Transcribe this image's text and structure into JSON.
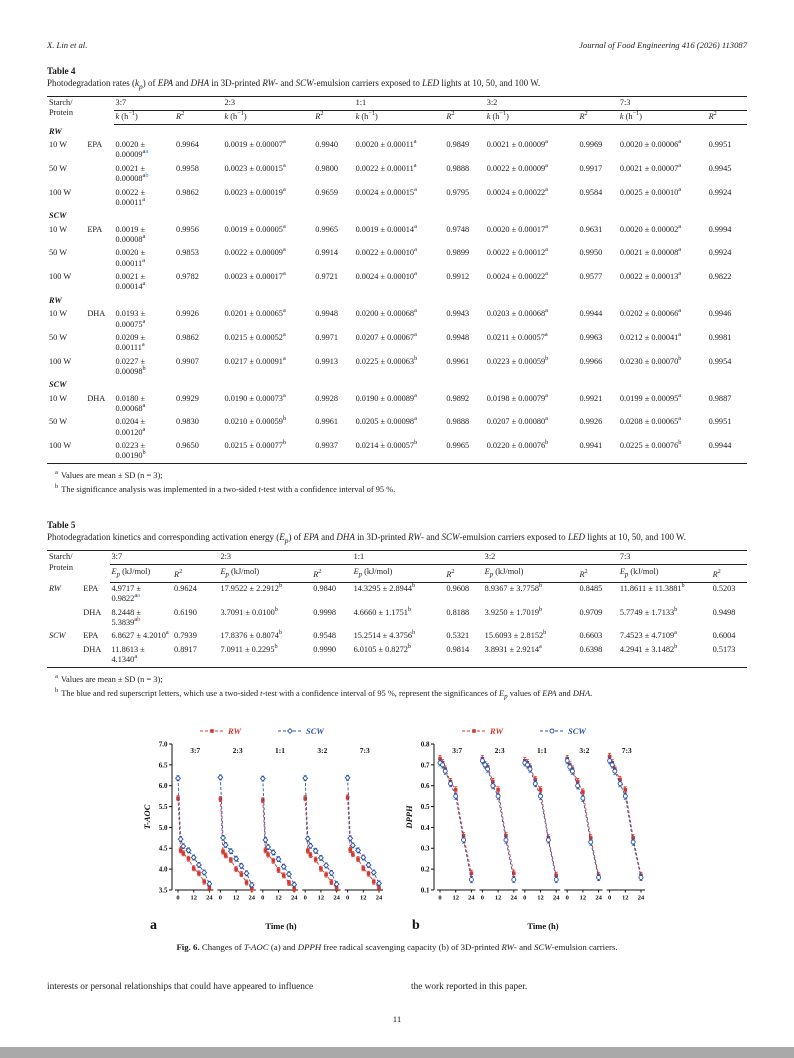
{
  "meta": {
    "sup_colors": {
      "k": "#111111",
      "b": "#2e86b5",
      "r": "#c0392b"
    },
    "series_colors": {
      "RW": "#d6382f",
      "SCW": "#2b54a8"
    }
  },
  "page": {
    "header_left": "X. Lin et al.",
    "header_right": "Journal of Food Engineering 416 (2026) 113087",
    "body_text_left": "interests or personal relationships that could have appeared to influence",
    "body_text_right": "the work reported in this paper.",
    "page_number": "11"
  },
  "table4": {
    "label": "Table 4",
    "caption": [
      {
        "t": "Photodegradation rates ("
      },
      {
        "t": "k",
        "i": 1
      },
      {
        "t": "p",
        "i": 1,
        "sub": 1
      },
      {
        "t": ") of "
      },
      {
        "t": "EPA",
        "i": 1
      },
      {
        "t": " and "
      },
      {
        "t": "DHA",
        "i": 1
      },
      {
        "t": " in 3D-printed "
      },
      {
        "t": "RW",
        "i": 1
      },
      {
        "t": "- and "
      },
      {
        "t": "SCW",
        "i": 1
      },
      {
        "t": "-emulsion carriers exposed to "
      },
      {
        "t": "LED",
        "i": 1
      },
      {
        "t": " lights at 10, 50, and 100 W."
      }
    ],
    "stub_header": [
      "Starch/",
      "Protein"
    ],
    "col_groups": [
      "3:7",
      "2:3",
      "1:1",
      "3:2",
      "7:3"
    ],
    "k_header": [
      {
        "t": "k",
        "i": 1
      },
      {
        "t": " (h"
      },
      {
        "t": "−1",
        "sup": 1
      },
      {
        "t": ")"
      }
    ],
    "r_header": [
      {
        "t": "R",
        "i": 1
      },
      {
        "t": "2",
        "sup": 1
      }
    ],
    "rows": [
      {
        "section": "RW"
      },
      {
        "label": "10 W",
        "sub": "EPA",
        "cells": [
          {
            "t": "0.0020 ± 0.00009",
            "sup": [
              [
                "a",
                "k"
              ],
              [
                "a",
                "b"
              ]
            ]
          },
          "0.9964",
          "0.0019 ± 0.00007^a",
          "0.9940",
          "0.0020 ± 0.00011^a",
          "0.9849",
          "0.0021 ± 0.00009^a",
          "0.9969",
          "0.0020 ± 0.00006^a",
          "0.9951"
        ]
      },
      {
        "label": "50 W",
        "sub": "",
        "cells": [
          {
            "t": "0.0021 ± 0.00008",
            "sup": [
              [
                "a",
                "k"
              ],
              [
                "b",
                "b"
              ]
            ]
          },
          "0.9958",
          "0.0023 ± 0.00015^a",
          "0.9800",
          "0.0022 ± 0.00011^a",
          "0.9888",
          "0.0022 ± 0.00009^a",
          "0.9917",
          "0.0021 ± 0.00007^a",
          "0.9945"
        ]
      },
      {
        "label": "100 W",
        "sub": "",
        "cells": [
          "0.0022 ± 0.00011^a",
          "0.9862",
          "0.0023 ± 0.00019^a",
          "0.9659",
          "0.0024 ± 0.00015^a",
          "0.9795",
          "0.0024 ± 0.00022^a",
          "0.9584",
          "0.0025 ± 0.00010^a",
          "0.9924"
        ]
      },
      {
        "section": "SCW"
      },
      {
        "label": "10 W",
        "sub": "EPA",
        "cells": [
          "0.0019 ± 0.00008^a",
          "0.9956",
          "0.0019 ± 0.00005^a",
          "0.9965",
          "0.0019 ± 0.00014^a",
          "0.9748",
          "0.0020 ± 0.00017^a",
          "0.9631",
          "0.0020 ± 0.00002^a",
          "0.9994"
        ]
      },
      {
        "label": "50 W",
        "sub": "",
        "cells": [
          "0.0020 ± 0.00011^a",
          "0.9853",
          "0.0022 ± 0.00009^a",
          "0.9914",
          "0.0022 ± 0.00010^a",
          "0.9899",
          "0.0022 ± 0.00012^a",
          "0.9950",
          "0.0021 ± 0.00008^a",
          "0.9924"
        ]
      },
      {
        "label": "100 W",
        "sub": "",
        "cells": [
          "0.0021 ± 0.00014^a",
          "0.9782",
          "0.0023 ± 0.00017^a",
          "0.9721",
          "0.0024 ± 0.00010^a",
          "0.9912",
          "0.0024 ± 0.00022^a",
          "0.9577",
          "0.0022 ± 0.00013^a",
          "0.9822"
        ]
      },
      {
        "section": "RW"
      },
      {
        "label": "10 W",
        "sub": "DHA",
        "cells": [
          "0.0193 ± 0.00075^a",
          "0.9926",
          "0.0201 ± 0.00065^a",
          "0.9948",
          "0.0200 ± 0.00068^a",
          "0.9943",
          "0.0203 ± 0.00068^a",
          "0.9944",
          "0.0202 ± 0.00066^a",
          "0.9946"
        ]
      },
      {
        "label": "50 W",
        "sub": "",
        "cells": [
          "0.0209 ± 0.00111^a",
          "0.9862",
          "0.0215 ± 0.00052^a",
          "0.9971",
          "0.0207 ± 0.00067^a",
          "0.9948",
          "0.0211 ± 0.00057^a",
          "0.9963",
          "0.0212 ± 0.00041^a",
          "0.9981"
        ]
      },
      {
        "label": "100 W",
        "sub": "",
        "cells": [
          "0.0227 ± 0.00098^b",
          "0.9907",
          "0.0217 ± 0.00091^a",
          "0.9913",
          "0.0225 ± 0.00063^b",
          "0.9961",
          "0.0223 ± 0.00059^b",
          "0.9966",
          "0.0230 ± 0.00070^b",
          "0.9954"
        ]
      },
      {
        "section": "SCW"
      },
      {
        "label": "10 W",
        "sub": "DHA",
        "cells": [
          "0.0180 ± 0.00068^a",
          "0.9929",
          "0.0190 ± 0.00073^a",
          "0.9928",
          "0.0190 ± 0.00089^a",
          "0.9892",
          "0.0198 ± 0.00079^a",
          "0.9921",
          "0.0199 ± 0.00095^a",
          "0.9887"
        ]
      },
      {
        "label": "50 W",
        "sub": "",
        "cells": [
          "0.0204 ± 0.00120^a",
          "0.9830",
          "0.0210 ± 0.00059^b",
          "0.9961",
          "0.0205 ± 0.00098^a",
          "0.9888",
          "0.0207 ± 0.00080^a",
          "0.9926",
          "0.0208 ± 0.00065^a",
          "0.9951"
        ]
      },
      {
        "label": "100 W",
        "sub": "",
        "cells": [
          "0.0223 ± 0.00190^b",
          "0.9650",
          "0.0215 ± 0.00077^b",
          "0.9937",
          "0.0214 ± 0.00057^b",
          "0.9965",
          "0.0220 ± 0.00076^b",
          "0.9941",
          "0.0225 ± 0.00076^b",
          "0.9944"
        ]
      }
    ],
    "footnotes": [
      {
        "mark": "a",
        "text": [
          {
            "t": "Values are mean ± SD (n = 3);"
          }
        ]
      },
      {
        "mark": "b",
        "text": [
          {
            "t": "The significance analysis was implemented in a two-sided "
          },
          {
            "t": "t",
            "i": 1
          },
          {
            "t": "-test with a confidence interval of 95 %."
          }
        ]
      }
    ]
  },
  "table5": {
    "label": "Table 5",
    "caption": [
      {
        "t": "Photodegradation kinetics and corresponding activation energy ("
      },
      {
        "t": "E",
        "i": 1
      },
      {
        "t": "p",
        "i": 1,
        "sub": 1
      },
      {
        "t": ") of "
      },
      {
        "t": "EPA",
        "i": 1
      },
      {
        "t": " and "
      },
      {
        "t": "DHA",
        "i": 1
      },
      {
        "t": " in 3D-printed "
      },
      {
        "t": "RW",
        "i": 1
      },
      {
        "t": "- and "
      },
      {
        "t": "SCW",
        "i": 1
      },
      {
        "t": "-emulsion carriers exposed to "
      },
      {
        "t": "LED",
        "i": 1
      },
      {
        "t": " lights at 10, 50, and 100 W."
      }
    ],
    "stub_header": [
      "Starch/",
      "Protein"
    ],
    "col_groups": [
      "3:7",
      "2:3",
      "1:1",
      "3:2",
      "7:3"
    ],
    "e_header": [
      {
        "t": "E",
        "i": 1
      },
      {
        "t": "p",
        "i": 1,
        "sub": 1
      },
      {
        "t": " (kJ/mol)"
      }
    ],
    "r_header": [
      {
        "t": "R",
        "i": 1
      },
      {
        "t": "2",
        "sup": 1
      }
    ],
    "rows": [
      {
        "label": "RW",
        "label_italic": true,
        "sub": "EPA",
        "cells": [
          {
            "t": "4.9717 ± 0.9822",
            "sup": [
              [
                "a",
                "k"
              ],
              [
                "a",
                "b"
              ]
            ]
          },
          "0.9624",
          "17.9522 ± 2.2912^b",
          "0.9840",
          "14.3295 ± 2.8944^b",
          "0.9608",
          "8.9367 ± 3.7758^b",
          "0.8485",
          "11.8611 ± 11.3881^b",
          "0.5203"
        ]
      },
      {
        "label": "",
        "sub": "DHA",
        "cells": [
          {
            "t": "8.2448 ± 5.3839",
            "sup": [
              [
                "a",
                "k"
              ],
              [
                "b",
                "r"
              ]
            ]
          },
          "0.6190",
          "3.7091 ± 0.0100^b",
          "0.9998",
          "4.6660 ± 1.1751^b",
          "0.8188",
          "3.9250 ± 1.7019^b",
          "0.9709",
          "5.7749 ± 1.7133^b",
          "0.9498"
        ]
      },
      {
        "label": "SCW",
        "label_italic": true,
        "sub": "EPA",
        "cells": [
          "6.8627 ± 4.2010^a",
          "0.7939",
          "17.8376 ± 0.8074^b",
          "0.9548",
          "15.2514 ± 4.3756^b",
          "0.5321",
          "15.6093 ± 2.8152^b",
          "0.6603",
          "7.4523 ± 4.7109^a",
          "0.6004"
        ]
      },
      {
        "label": "",
        "sub": "DHA",
        "cells": [
          "11.8613 ± 4.1340^a",
          "0.8917",
          "7.0911 ± 0.2295^b",
          "0.9990",
          "6.0105 ± 0.8272^b",
          "0.9814",
          "3.8931 ± 2.9214^a",
          "0.6398",
          "4.2941 ± 3.1482^b",
          "0.5173"
        ]
      }
    ],
    "footnotes": [
      {
        "mark": "a",
        "text": [
          {
            "t": "Values are mean ± SD (n = 3);"
          }
        ]
      },
      {
        "mark": "b",
        "text": [
          {
            "t": "The blue and red superscript letters, which use a two-sided "
          },
          {
            "t": "t",
            "i": 1
          },
          {
            "t": "-test with a confidence interval of 95 %, represent the significances of "
          },
          {
            "t": "E",
            "i": 1
          },
          {
            "t": "p",
            "i": 1,
            "sub": 1
          },
          {
            "t": " values of "
          },
          {
            "t": "EPA",
            "i": 1
          },
          {
            "t": " and "
          },
          {
            "t": "DHA",
            "i": 1
          },
          {
            "t": "."
          }
        ]
      }
    ]
  },
  "figure": {
    "caption": [
      {
        "t": "Fig. 6.",
        "b": 1
      },
      {
        "t": " Changes of "
      },
      {
        "t": "T-AOC",
        "i": 1
      },
      {
        "t": " (a) and "
      },
      {
        "t": "DPPH",
        "i": 1
      },
      {
        "t": " free radical scavenging capacity (b) of 3D-printed "
      },
      {
        "t": "RW",
        "i": 1
      },
      {
        "t": "- and "
      },
      {
        "t": "SCW",
        "i": 1
      },
      {
        "t": "-emulsion carriers."
      }
    ]
  },
  "chart_data": [
    {
      "type": "line",
      "panel": "a",
      "ylabel": "T-AOC",
      "xlabel": "Time (h)",
      "ylim": [
        3.5,
        7.0
      ],
      "yticks": [
        3.5,
        4.0,
        4.5,
        5.0,
        5.5,
        6.0,
        6.5,
        7.0
      ],
      "xticks": [
        0,
        12,
        24
      ],
      "x": [
        0,
        2,
        4,
        8,
        12,
        16,
        20,
        24
      ],
      "subpanels": [
        "3:7",
        "2:3",
        "1:1",
        "3:2",
        "7:3"
      ],
      "legend_position": "top",
      "grid": false,
      "series": [
        {
          "name": "RW",
          "color": "#d6382f",
          "marker": "square",
          "err": 0.06,
          "values": {
            "3:7": [
              5.7,
              4.45,
              4.38,
              4.25,
              4.02,
              3.9,
              3.7,
              3.55
            ],
            "2:3": [
              5.68,
              4.42,
              4.33,
              4.22,
              4.0,
              3.88,
              3.68,
              3.53
            ],
            "1:1": [
              5.65,
              4.45,
              4.35,
              4.2,
              3.98,
              3.85,
              3.67,
              3.52
            ],
            "3:2": [
              5.7,
              4.44,
              4.34,
              4.23,
              4.01,
              3.87,
              3.69,
              3.54
            ],
            "7:3": [
              5.72,
              4.46,
              4.36,
              4.24,
              4.02,
              3.89,
              3.7,
              3.55
            ]
          }
        },
        {
          "name": "SCW",
          "color": "#2b54a8",
          "marker": "diamond",
          "err": 0.06,
          "values": {
            "3:7": [
              6.18,
              4.72,
              4.55,
              4.45,
              4.28,
              4.1,
              3.92,
              3.65
            ],
            "2:3": [
              6.2,
              4.75,
              4.58,
              4.43,
              4.25,
              4.08,
              3.9,
              3.62
            ],
            "1:1": [
              6.17,
              4.7,
              4.53,
              4.4,
              4.24,
              4.06,
              3.88,
              3.63
            ],
            "3:2": [
              6.18,
              4.73,
              4.56,
              4.44,
              4.27,
              4.09,
              3.91,
              3.64
            ],
            "7:3": [
              6.19,
              4.74,
              4.57,
              4.45,
              4.28,
              4.1,
              3.92,
              3.66
            ]
          }
        }
      ]
    },
    {
      "type": "line",
      "panel": "b",
      "ylabel": "DPPH",
      "xlabel": "Time (h)",
      "ylim": [
        0.1,
        0.8
      ],
      "yticks": [
        0.1,
        0.2,
        0.3,
        0.4,
        0.5,
        0.6,
        0.7,
        0.8
      ],
      "xticks": [
        0,
        12,
        24
      ],
      "x": [
        0,
        2,
        4,
        8,
        12,
        18,
        24
      ],
      "subpanels": [
        "3:7",
        "2:3",
        "1:1",
        "3:2",
        "7:3"
      ],
      "legend_position": "top",
      "grid": false,
      "series": [
        {
          "name": "RW",
          "color": "#d6382f",
          "marker": "square",
          "err": 0.015,
          "values": {
            "3:7": [
              0.73,
              0.71,
              0.68,
              0.62,
              0.58,
              0.36,
              0.18
            ],
            "2:3": [
              0.73,
              0.7,
              0.69,
              0.62,
              0.58,
              0.36,
              0.18
            ],
            "1:1": [
              0.72,
              0.71,
              0.69,
              0.63,
              0.58,
              0.35,
              0.17
            ],
            "3:2": [
              0.73,
              0.7,
              0.68,
              0.62,
              0.57,
              0.35,
              0.17
            ],
            "7:3": [
              0.74,
              0.71,
              0.68,
              0.63,
              0.58,
              0.35,
              0.17
            ]
          }
        },
        {
          "name": "SCW",
          "color": "#2b54a8",
          "marker": "circle",
          "err": 0.015,
          "values": {
            "3:7": [
              0.71,
              0.7,
              0.67,
              0.61,
              0.55,
              0.34,
              0.15
            ],
            "2:3": [
              0.72,
              0.7,
              0.68,
              0.6,
              0.55,
              0.34,
              0.15
            ],
            "1:1": [
              0.71,
              0.7,
              0.68,
              0.61,
              0.55,
              0.34,
              0.15
            ],
            "3:2": [
              0.72,
              0.69,
              0.67,
              0.6,
              0.54,
              0.33,
              0.16
            ],
            "7:3": [
              0.72,
              0.7,
              0.67,
              0.61,
              0.55,
              0.33,
              0.16
            ]
          }
        }
      ]
    }
  ]
}
